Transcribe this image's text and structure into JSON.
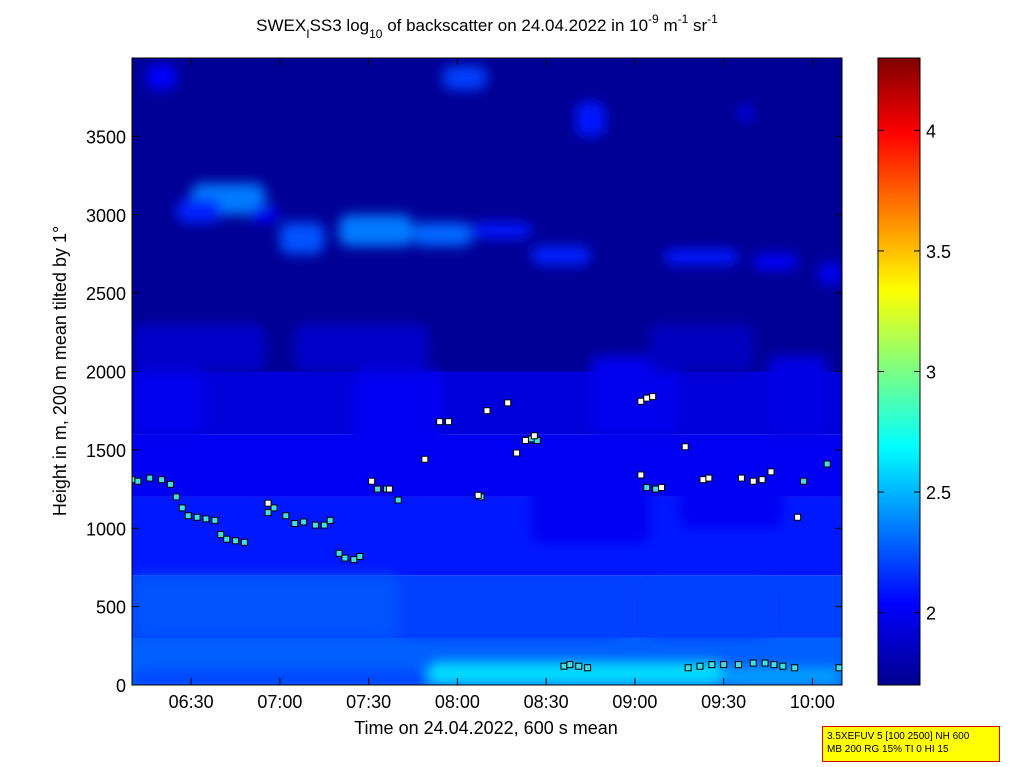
{
  "colors": {
    "background": "#ffffff",
    "axes": "#000000",
    "marker_edge": "#000000",
    "marker_fill_above_1500": "#ffffff",
    "marker_fill_below_1500": "#40e0e0",
    "info_box_background": "#ffff00",
    "info_box_border": "#d40000",
    "colormap": [
      "#00008f",
      "#0000ff",
      "#00ffff",
      "#ffff00",
      "#ff0000",
      "#800000"
    ]
  },
  "info_box": {
    "line1": "3.5XEFUV 5 [100 2500] NH 600",
    "line2": "MB 200 RG 15% TI 0 HI 15"
  },
  "chart_data": {
    "type": "heatmap",
    "title": {
      "text_main": "SWEX",
      "text_sub": "I",
      "text_after_sub": "SS3 log",
      "text_log_sub": "10",
      "text_mid": " of backscatter on 24.04.2022 in 10",
      "text_exp1": "-9",
      "text_unit1": " m",
      "text_exp2": "-1",
      "text_unit2": " sr",
      "text_exp3": "-1"
    },
    "xlabel": "Time on 24.04.2022, 600 s mean",
    "ylabel": "Height in m, 200 m mean tilted by 1°",
    "xlim": [
      "06:10",
      "10:10"
    ],
    "ylim": [
      0,
      4000
    ],
    "x_ticks": [
      {
        "time": "06:30",
        "label": "06:30"
      },
      {
        "time": "07:00",
        "label": "07:00"
      },
      {
        "time": "07:30",
        "label": "07:30"
      },
      {
        "time": "08:00",
        "label": "08:00"
      },
      {
        "time": "08:30",
        "label": "08:30"
      },
      {
        "time": "09:00",
        "label": "09:00"
      },
      {
        "time": "09:30",
        "label": "09:30"
      },
      {
        "time": "10:00",
        "label": "10:00"
      }
    ],
    "y_ticks": [
      {
        "value": 0,
        "label": "0"
      },
      {
        "value": 500,
        "label": "500"
      },
      {
        "value": 1000,
        "label": "1000"
      },
      {
        "value": 1500,
        "label": "1500"
      },
      {
        "value": 2000,
        "label": "2000"
      },
      {
        "value": 2500,
        "label": "2500"
      },
      {
        "value": 3000,
        "label": "3000"
      },
      {
        "value": 3500,
        "label": "3500"
      }
    ],
    "colorbar": {
      "range": [
        1.7,
        4.3
      ],
      "ticks": [
        {
          "value": 2,
          "label": "2"
        },
        {
          "value": 2.5,
          "label": "2.5"
        },
        {
          "value": 3,
          "label": "3"
        },
        {
          "value": 3.5,
          "label": "3.5"
        },
        {
          "value": 4,
          "label": "4"
        }
      ]
    },
    "field_layers": [
      {
        "value": 2.28,
        "from": 0,
        "to": 300
      },
      {
        "value": 2.2,
        "from": 300,
        "to": 700
      },
      {
        "value": 2.1,
        "from": 700,
        "to": 1200
      },
      {
        "value": 2.0,
        "from": 1200,
        "to": 1600
      },
      {
        "value": 1.93,
        "from": 1600,
        "to": 2000
      },
      {
        "value": 1.72,
        "from": 2000,
        "to": 4000
      }
    ],
    "features": [
      {
        "t0": "06:10",
        "t1": "08:35",
        "z0": 0,
        "z1": 80,
        "value": 2.2
      },
      {
        "t0": "07:50",
        "t1": "09:30",
        "z0": 0,
        "z1": 150,
        "value": 2.6
      },
      {
        "t0": "09:30",
        "t1": "10:10",
        "z0": 0,
        "z1": 110,
        "value": 2.45
      },
      {
        "t0": "06:10",
        "t1": "07:40",
        "z0": 300,
        "z1": 700,
        "value": 2.25
      },
      {
        "t0": "07:40",
        "t1": "08:55",
        "z0": 300,
        "z1": 600,
        "value": 2.2
      },
      {
        "t0": "09:05",
        "t1": "09:45",
        "z0": 300,
        "z1": 650,
        "value": 2.2
      },
      {
        "t0": "08:25",
        "t1": "09:05",
        "z0": 900,
        "z1": 1500,
        "value": 2.0
      },
      {
        "t0": "09:15",
        "t1": "09:50",
        "z0": 1000,
        "z1": 1500,
        "value": 2.0
      },
      {
        "t0": "06:10",
        "t1": "06:35",
        "z0": 1600,
        "z1": 2000,
        "value": 1.98
      },
      {
        "t0": "07:25",
        "t1": "07:55",
        "z0": 1500,
        "z1": 2000,
        "value": 2.0
      },
      {
        "t0": "08:45",
        "t1": "09:15",
        "z0": 1600,
        "z1": 2100,
        "value": 1.98
      },
      {
        "t0": "09:45",
        "t1": "10:05",
        "z0": 1600,
        "z1": 2100,
        "value": 1.96
      },
      {
        "t0": "06:10",
        "t1": "06:55",
        "z0": 2000,
        "z1": 2300,
        "value": 1.88
      },
      {
        "t0": "07:05",
        "t1": "07:50",
        "z0": 2000,
        "z1": 2300,
        "value": 1.88
      },
      {
        "t0": "09:05",
        "t1": "09:40",
        "z0": 2000,
        "z1": 2300,
        "value": 1.85
      },
      {
        "t0": "06:30",
        "t1": "06:55",
        "z0": 3000,
        "z1": 3200,
        "value": 2.35
      },
      {
        "t0": "06:25",
        "t1": "06:40",
        "z0": 2950,
        "z1": 3100,
        "value": 2.12
      },
      {
        "t0": "06:50",
        "t1": "07:00",
        "z0": 2950,
        "z1": 3050,
        "value": 2.0
      },
      {
        "t0": "07:00",
        "t1": "07:15",
        "z0": 2750,
        "z1": 2950,
        "value": 2.25
      },
      {
        "t0": "07:20",
        "t1": "07:45",
        "z0": 2800,
        "z1": 3000,
        "value": 2.35
      },
      {
        "t0": "07:45",
        "t1": "08:05",
        "z0": 2800,
        "z1": 2950,
        "value": 2.3
      },
      {
        "t0": "08:05",
        "t1": "08:25",
        "z0": 2850,
        "z1": 2950,
        "value": 2.1
      },
      {
        "t0": "08:25",
        "t1": "08:45",
        "z0": 2680,
        "z1": 2800,
        "value": 2.12
      },
      {
        "t0": "09:10",
        "t1": "09:35",
        "z0": 2680,
        "z1": 2780,
        "value": 2.1
      },
      {
        "t0": "09:40",
        "t1": "09:55",
        "z0": 2650,
        "z1": 2750,
        "value": 2.05
      },
      {
        "t0": "10:02",
        "t1": "10:10",
        "z0": 2550,
        "z1": 2700,
        "value": 2.0
      },
      {
        "t0": "06:15",
        "t1": "06:25",
        "z0": 3800,
        "z1": 3960,
        "value": 2.05
      },
      {
        "t0": "07:55",
        "t1": "08:10",
        "z0": 3800,
        "z1": 3950,
        "value": 2.2
      },
      {
        "t0": "08:40",
        "t1": "08:50",
        "z0": 3500,
        "z1": 3720,
        "value": 2.1
      },
      {
        "t0": "09:35",
        "t1": "09:40",
        "z0": 3600,
        "z1": 3700,
        "value": 2.0
      }
    ],
    "series": [
      {
        "marker_fill": "#40e0e0",
        "points": [
          [
            "06:10",
            1310
          ],
          [
            "06:12",
            1300
          ],
          [
            "06:16",
            1320
          ],
          [
            "06:20",
            1310
          ],
          [
            "06:23",
            1280
          ],
          [
            "06:25",
            1200
          ],
          [
            "06:27",
            1130
          ],
          [
            "06:29",
            1080
          ],
          [
            "06:32",
            1070
          ],
          [
            "06:35",
            1060
          ],
          [
            "06:38",
            1050
          ],
          [
            "06:40",
            960
          ],
          [
            "06:42",
            930
          ],
          [
            "06:45",
            920
          ],
          [
            "06:48",
            910
          ],
          [
            "06:56",
            1100
          ],
          [
            "06:58",
            1130
          ],
          [
            "07:02",
            1080
          ],
          [
            "07:05",
            1030
          ],
          [
            "07:08",
            1040
          ],
          [
            "07:12",
            1020
          ],
          [
            "07:15",
            1020
          ],
          [
            "07:17",
            1050
          ],
          [
            "07:20",
            840
          ],
          [
            "07:22",
            810
          ],
          [
            "07:25",
            800
          ],
          [
            "07:27",
            820
          ],
          [
            "07:33",
            1250
          ],
          [
            "07:36",
            1250
          ],
          [
            "07:40",
            1180
          ],
          [
            "08:08",
            1200
          ],
          [
            "08:25",
            1570
          ],
          [
            "08:27",
            1560
          ],
          [
            "08:36",
            120
          ],
          [
            "08:38",
            130
          ],
          [
            "08:41",
            120
          ],
          [
            "08:44",
            110
          ],
          [
            "09:04",
            1260
          ],
          [
            "09:07",
            1250
          ],
          [
            "09:18",
            110
          ],
          [
            "09:22",
            120
          ],
          [
            "09:26",
            130
          ],
          [
            "09:30",
            130
          ],
          [
            "09:35",
            130
          ],
          [
            "09:40",
            140
          ],
          [
            "09:44",
            140
          ],
          [
            "09:47",
            130
          ],
          [
            "09:50",
            120
          ],
          [
            "09:54",
            110
          ],
          [
            "09:57",
            1300
          ],
          [
            "10:05",
            1410
          ],
          [
            "10:09",
            110
          ]
        ]
      },
      {
        "marker_fill": "#ffffff",
        "points": [
          [
            "06:56",
            1160
          ],
          [
            "07:31",
            1300
          ],
          [
            "07:37",
            1250
          ],
          [
            "07:49",
            1440
          ],
          [
            "07:54",
            1680
          ],
          [
            "07:57",
            1680
          ],
          [
            "08:07",
            1210
          ],
          [
            "08:10",
            1750
          ],
          [
            "08:17",
            1800
          ],
          [
            "08:20",
            1480
          ],
          [
            "08:23",
            1560
          ],
          [
            "08:26",
            1590
          ],
          [
            "09:02",
            1340
          ],
          [
            "09:02",
            1810
          ],
          [
            "09:04",
            1830
          ],
          [
            "09:06",
            1840
          ],
          [
            "09:09",
            1260
          ],
          [
            "09:17",
            1520
          ],
          [
            "09:23",
            1310
          ],
          [
            "09:25",
            1320
          ],
          [
            "09:36",
            1320
          ],
          [
            "09:40",
            1300
          ],
          [
            "09:43",
            1310
          ],
          [
            "09:46",
            1360
          ],
          [
            "09:55",
            1070
          ]
        ]
      }
    ]
  }
}
